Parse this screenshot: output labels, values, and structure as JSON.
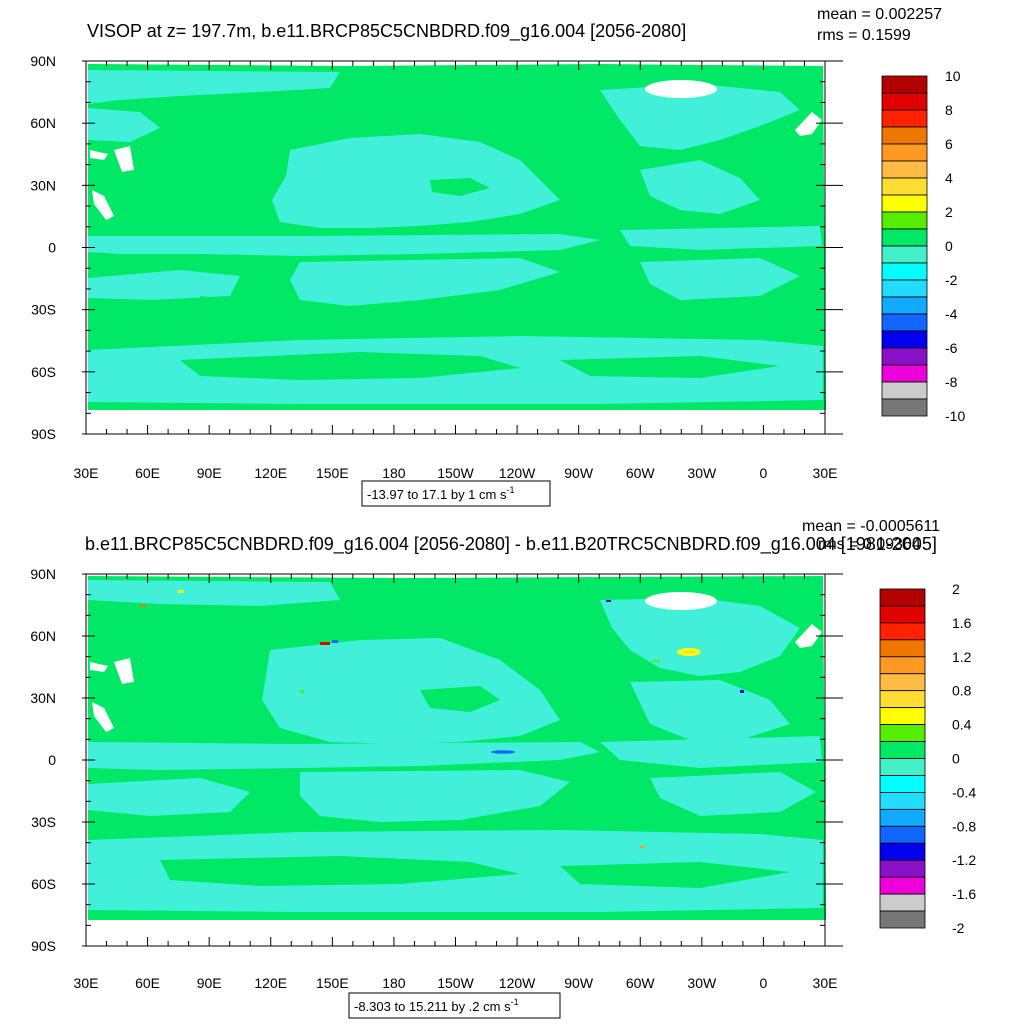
{
  "colors": {
    "background": "#ffffff",
    "green": "#00e866",
    "cyan": "#40f0d8",
    "light_cyan": "#7dfff0",
    "frame": "#000000"
  },
  "chart_data": [
    {
      "type": "heatmap",
      "title": "VISOP at z= 197.7m, b.e11.BRCP85C5CNBDRD.f09_g16.004 [2056-2080]",
      "stats": {
        "mean": "mean = 0.002257",
        "rms": "rms = 0.1599"
      },
      "x_ticks": [
        "30E",
        "60E",
        "90E",
        "120E",
        "150E",
        "180",
        "150W",
        "120W",
        "90W",
        "60W",
        "30W",
        "0",
        "30E"
      ],
      "y_ticks": [
        "90N",
        "60N",
        "30N",
        "0",
        "30S",
        "60S",
        "90S"
      ],
      "xlim": [
        30,
        390
      ],
      "ylim": [
        -90,
        90
      ],
      "info_label": {
        "text": "-13.97 to 17.1 by 1 cm s",
        "superscript": "-1"
      },
      "colorbar": {
        "labels": [
          "10",
          "8",
          "6",
          "4",
          "2",
          "0",
          "-2",
          "-4",
          "-6",
          "-8",
          "-10"
        ],
        "colors": [
          "#b30000",
          "#e00000",
          "#ff2200",
          "#ee7700",
          "#ff9922",
          "#ffbb44",
          "#ffdd33",
          "#ffff00",
          "#55ee00",
          "#00e866",
          "#44f0c8",
          "#00ffff",
          "#22ddff",
          "#11aaff",
          "#1166ff",
          "#0000ee",
          "#8a10c8",
          "#ee00dd",
          "#cccccc",
          "#777777"
        ]
      },
      "field": {
        "dominant": "0 to 1",
        "secondary": "-1 to 0"
      }
    },
    {
      "type": "heatmap",
      "title": "b.e11.BRCP85C5CNBDRD.f09_g16.004 [2056-2080] - b.e11.B20TRC5CNBDRD.f09_g16.004 [1981-2005]",
      "stats": {
        "mean": "mean = -0.0005611",
        "rms": "rms = 0.09364"
      },
      "x_ticks": [
        "30E",
        "60E",
        "90E",
        "120E",
        "150E",
        "180",
        "150W",
        "120W",
        "90W",
        "60W",
        "30W",
        "0",
        "30E"
      ],
      "y_ticks": [
        "90N",
        "60N",
        "30N",
        "0",
        "30S",
        "60S",
        "90S"
      ],
      "xlim": [
        30,
        390
      ],
      "ylim": [
        -90,
        90
      ],
      "info_label": {
        "text": "-8.303 to 15.211 by .2 cm s",
        "superscript": "-1"
      },
      "colorbar": {
        "labels": [
          "2",
          "1.6",
          "1.2",
          "0.8",
          "0.4",
          "0",
          "-0.4",
          "-0.8",
          "-1.2",
          "-1.6",
          "-2"
        ],
        "colors": [
          "#b30000",
          "#e00000",
          "#ff2200",
          "#ee7700",
          "#ff9922",
          "#ffbb44",
          "#ffdd33",
          "#ffff00",
          "#55ee00",
          "#00e866",
          "#44f0c8",
          "#00ffff",
          "#22ddff",
          "#11aaff",
          "#1166ff",
          "#0000ee",
          "#8a10c8",
          "#ee00dd",
          "#cccccc",
          "#777777"
        ]
      },
      "field": {
        "dominant": "0 to 0.2",
        "secondary": "-0.2 to 0"
      }
    }
  ]
}
